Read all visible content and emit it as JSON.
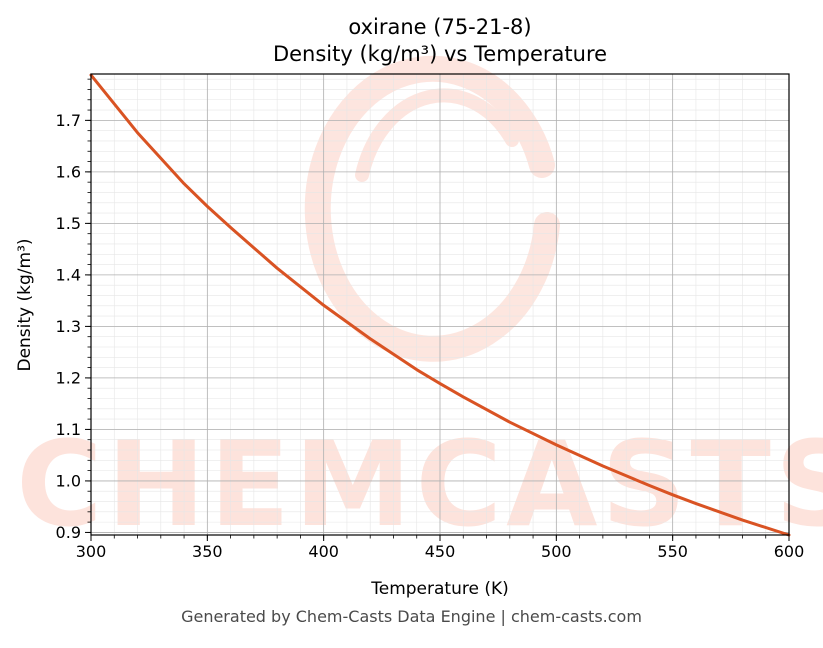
{
  "colors": {
    "line": "#d95323",
    "watermark": "#fde3dc",
    "grid_major": "#b0b0b0",
    "grid_minor": "#e6e6e6",
    "background": "#ffffff"
  },
  "watermark_text": "CHEMCASTS",
  "chart_data": {
    "type": "line",
    "title": "oxirane (75-21-8)",
    "subtitle": "Density (kg/m³) vs Temperature",
    "xlabel": "Temperature (K)",
    "ylabel": "Density (kg/m³)",
    "xlim": [
      300,
      600
    ],
    "ylim": [
      0.895,
      1.79
    ],
    "xticks": [
      300,
      350,
      400,
      450,
      500,
      550,
      600
    ],
    "yticks": [
      0.9,
      1.0,
      1.1,
      1.2,
      1.3,
      1.4,
      1.5,
      1.6,
      1.7
    ],
    "ytick_labels": [
      "0.9",
      "1.0",
      "1.1",
      "1.2",
      "1.3",
      "1.4",
      "1.5",
      "1.6",
      "1.7"
    ],
    "grid": true,
    "minor_grid": true,
    "series": [
      {
        "x": [
          300,
          320,
          340,
          350,
          360,
          380,
          400,
          420,
          440,
          450,
          460,
          480,
          500,
          520,
          540,
          550,
          560,
          580,
          600
        ],
        "values": [
          1.788,
          1.676,
          1.577,
          1.533,
          1.492,
          1.413,
          1.341,
          1.276,
          1.216,
          1.189,
          1.163,
          1.114,
          1.07,
          1.029,
          0.991,
          0.973,
          0.956,
          0.924,
          0.895
        ]
      }
    ]
  },
  "footer": "Generated by Chem-Casts Data Engine | chem-casts.com"
}
